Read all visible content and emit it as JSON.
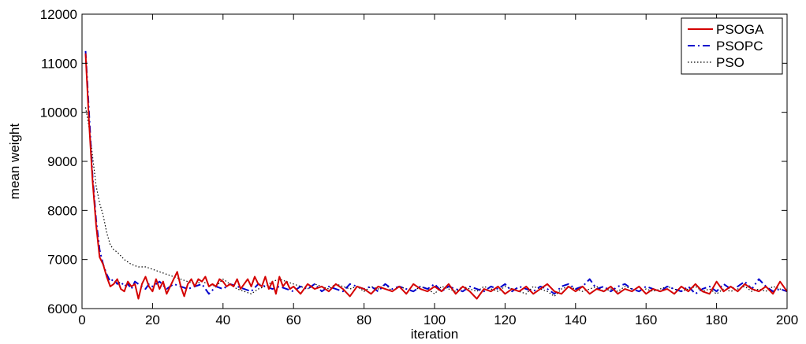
{
  "chart_data": {
    "type": "line",
    "title": "",
    "xlabel": "iteration",
    "ylabel": "mean weight",
    "xlim": [
      0,
      200
    ],
    "ylim": [
      6000,
      12000
    ],
    "xticks": [
      0,
      20,
      40,
      60,
      80,
      100,
      120,
      140,
      160,
      180,
      200
    ],
    "yticks": [
      6000,
      7000,
      8000,
      9000,
      10000,
      11000,
      12000
    ],
    "grid": false,
    "legend_position": "top-right",
    "series": [
      {
        "name": "PSOGA",
        "color": "#d40000",
        "style": "solid",
        "x": [
          1,
          2,
          3,
          4,
          5,
          6,
          7,
          8,
          9,
          10,
          11,
          12,
          13,
          14,
          15,
          16,
          17,
          18,
          19,
          20,
          21,
          22,
          23,
          24,
          25,
          26,
          27,
          28,
          29,
          30,
          31,
          32,
          33,
          34,
          35,
          36,
          37,
          38,
          39,
          40,
          41,
          42,
          43,
          44,
          45,
          46,
          47,
          48,
          49,
          50,
          51,
          52,
          53,
          54,
          55,
          56,
          57,
          58,
          59,
          60,
          62,
          64,
          66,
          68,
          70,
          72,
          74,
          76,
          78,
          80,
          82,
          84,
          86,
          88,
          90,
          92,
          94,
          96,
          98,
          100,
          102,
          104,
          106,
          108,
          110,
          112,
          114,
          116,
          118,
          120,
          122,
          124,
          126,
          128,
          130,
          132,
          134,
          136,
          138,
          140,
          142,
          144,
          146,
          148,
          150,
          152,
          154,
          156,
          158,
          160,
          162,
          164,
          166,
          168,
          170,
          172,
          174,
          176,
          178,
          180,
          182,
          184,
          186,
          188,
          190,
          192,
          194,
          196,
          198,
          200
        ],
        "y": [
          11200,
          9800,
          8600,
          7700,
          7050,
          6900,
          6650,
          6450,
          6500,
          6600,
          6400,
          6350,
          6550,
          6450,
          6500,
          6200,
          6500,
          6650,
          6450,
          6350,
          6600,
          6400,
          6550,
          6300,
          6450,
          6600,
          6750,
          6450,
          6250,
          6500,
          6600,
          6450,
          6600,
          6550,
          6650,
          6450,
          6500,
          6450,
          6600,
          6550,
          6450,
          6500,
          6450,
          6600,
          6400,
          6500,
          6600,
          6450,
          6650,
          6500,
          6450,
          6650,
          6400,
          6550,
          6300,
          6650,
          6450,
          6550,
          6400,
          6450,
          6300,
          6500,
          6400,
          6450,
          6350,
          6500,
          6400,
          6250,
          6450,
          6400,
          6300,
          6450,
          6400,
          6350,
          6450,
          6300,
          6500,
          6400,
          6350,
          6450,
          6350,
          6500,
          6300,
          6450,
          6350,
          6200,
          6400,
          6350,
          6450,
          6300,
          6400,
          6350,
          6450,
          6300,
          6400,
          6500,
          6350,
          6300,
          6450,
          6350,
          6450,
          6300,
          6400,
          6350,
          6450,
          6300,
          6400,
          6350,
          6450,
          6300,
          6400,
          6350,
          6400,
          6300,
          6450,
          6350,
          6500,
          6350,
          6300,
          6550,
          6350,
          6450,
          6350,
          6500,
          6400,
          6350,
          6450,
          6300,
          6550,
          6350
        ]
      },
      {
        "name": "PSOPC",
        "color": "#0000cc",
        "style": "dashdot",
        "x": [
          1,
          2,
          3,
          4,
          5,
          6,
          7,
          8,
          9,
          10,
          11,
          12,
          13,
          14,
          15,
          16,
          17,
          18,
          19,
          20,
          22,
          24,
          26,
          28,
          30,
          32,
          34,
          36,
          38,
          40,
          42,
          44,
          46,
          48,
          50,
          52,
          54,
          56,
          58,
          60,
          62,
          64,
          66,
          68,
          70,
          72,
          74,
          76,
          78,
          80,
          82,
          84,
          86,
          88,
          90,
          92,
          94,
          96,
          98,
          100,
          102,
          104,
          106,
          108,
          110,
          112,
          114,
          116,
          118,
          120,
          122,
          124,
          126,
          128,
          130,
          132,
          134,
          136,
          138,
          140,
          142,
          144,
          146,
          148,
          150,
          152,
          154,
          156,
          158,
          160,
          162,
          164,
          166,
          168,
          170,
          172,
          174,
          176,
          178,
          180,
          182,
          184,
          186,
          188,
          190,
          192,
          194,
          196,
          198,
          200
        ],
        "y": [
          11250,
          10000,
          8700,
          7800,
          7200,
          6900,
          6700,
          6550,
          6600,
          6500,
          6550,
          6450,
          6500,
          6400,
          6550,
          6500,
          6450,
          6400,
          6500,
          6450,
          6550,
          6400,
          6500,
          6450,
          6400,
          6450,
          6500,
          6300,
          6450,
          6400,
          6500,
          6450,
          6400,
          6350,
          6500,
          6450,
          6400,
          6450,
          6400,
          6350,
          6450,
          6400,
          6500,
          6350,
          6450,
          6400,
          6350,
          6500,
          6450,
          6400,
          6450,
          6350,
          6500,
          6400,
          6450,
          6400,
          6350,
          6450,
          6400,
          6500,
          6350,
          6450,
          6400,
          6350,
          6450,
          6400,
          6350,
          6450,
          6400,
          6500,
          6350,
          6450,
          6400,
          6350,
          6450,
          6400,
          6300,
          6450,
          6500,
          6400,
          6450,
          6600,
          6400,
          6450,
          6350,
          6450,
          6500,
          6400,
          6350,
          6450,
          6400,
          6350,
          6450,
          6400,
          6350,
          6450,
          6300,
          6400,
          6450,
          6350,
          6500,
          6400,
          6450,
          6550,
          6400,
          6600,
          6450,
          6350,
          6400,
          6350
        ]
      },
      {
        "name": "PSO",
        "color": "#000000",
        "style": "dotted",
        "x": [
          1,
          2,
          3,
          4,
          5,
          6,
          7,
          8,
          9,
          10,
          12,
          14,
          16,
          18,
          20,
          22,
          24,
          26,
          28,
          30,
          32,
          34,
          36,
          38,
          40,
          42,
          44,
          46,
          48,
          50,
          52,
          54,
          56,
          58,
          60,
          62,
          64,
          66,
          68,
          70,
          72,
          74,
          76,
          78,
          80,
          82,
          84,
          86,
          88,
          90,
          92,
          94,
          96,
          98,
          100,
          102,
          104,
          106,
          108,
          110,
          112,
          114,
          116,
          118,
          120,
          122,
          124,
          126,
          128,
          130,
          132,
          134,
          136,
          138,
          140,
          142,
          144,
          146,
          148,
          150,
          152,
          154,
          156,
          158,
          160,
          162,
          164,
          166,
          168,
          170,
          172,
          174,
          176,
          178,
          180,
          182,
          184,
          186,
          188,
          190,
          192,
          194,
          196,
          198,
          200
        ],
        "y": [
          10100,
          9700,
          9100,
          8500,
          8150,
          7900,
          7550,
          7300,
          7200,
          7150,
          7000,
          6900,
          6850,
          6850,
          6800,
          6750,
          6700,
          6650,
          6600,
          6550,
          6500,
          6550,
          6500,
          6450,
          6600,
          6500,
          6400,
          6350,
          6300,
          6400,
          6450,
          6550,
          6600,
          6550,
          6500,
          6450,
          6400,
          6500,
          6450,
          6400,
          6500,
          6450,
          6400,
          6450,
          6350,
          6450,
          6400,
          6500,
          6350,
          6450,
          6400,
          6350,
          6450,
          6400,
          6300,
          6450,
          6400,
          6350,
          6450,
          6400,
          6350,
          6450,
          6400,
          6350,
          6450,
          6400,
          6350,
          6300,
          6450,
          6400,
          6350,
          6250,
          6400,
          6450,
          6400,
          6350,
          6400,
          6450,
          6350,
          6400,
          6350,
          6450,
          6400,
          6350,
          6400,
          6350,
          6400,
          6450,
          6400,
          6350,
          6400,
          6450,
          6350,
          6400,
          6300,
          6400,
          6350,
          6400,
          6450,
          6350,
          6400,
          6350,
          6450,
          6400,
          6350
        ]
      }
    ]
  }
}
